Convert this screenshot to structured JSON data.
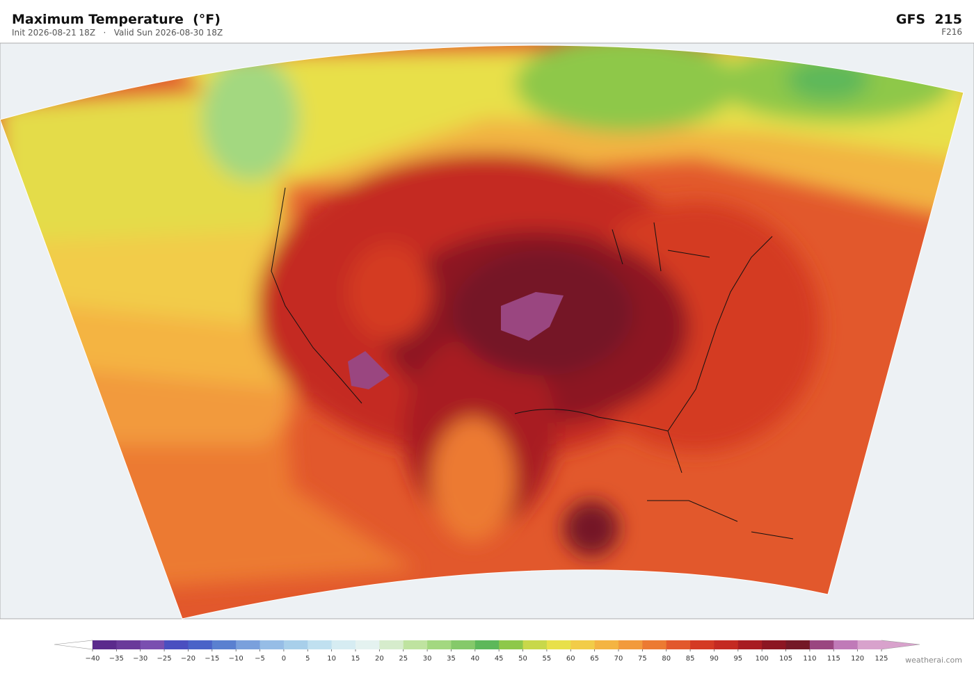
{
  "header": {
    "title": "Maximum Temperature  (°F)",
    "subtitle": "Init 2026-08-21 18Z   ·   Valid Sun 2026-08-30 18Z",
    "model": "GFS  215",
    "forecast_hour": "F216"
  },
  "colorbar": {
    "ticks": [
      {
        "value": -40,
        "label": "−40"
      },
      {
        "value": -35,
        "label": "−35"
      },
      {
        "value": -30,
        "label": "−30"
      },
      {
        "value": -25,
        "label": "−25"
      },
      {
        "value": -20,
        "label": "−20"
      },
      {
        "value": -15,
        "label": "−15"
      },
      {
        "value": -10,
        "label": "−10"
      },
      {
        "value": -5,
        "label": "−5"
      },
      0,
      5,
      10,
      15,
      20,
      25,
      30,
      35,
      40,
      45,
      50,
      55,
      60,
      65,
      70,
      75,
      80,
      85,
      90,
      95,
      100,
      105,
      110,
      115,
      120,
      125
    ],
    "colors": [
      "#5b2a8c",
      "#6a3a9a",
      "#7a4fb0",
      "#4a4fc0",
      "#4a63c8",
      "#5a80d0",
      "#7aa0dc",
      "#96bde6",
      "#a8cfea",
      "#c0e0f0",
      "#d6ecf2",
      "#e4f2f0",
      "#d6eccc",
      "#bfe3a0",
      "#a3d880",
      "#85c96a",
      "#5db85a",
      "#8ec84a",
      "#c8d84a",
      "#e8e04a",
      "#f2cc48",
      "#f4b442",
      "#f29a3c",
      "#ec7a32",
      "#e2582c",
      "#d43a24",
      "#c42a22",
      "#a81c22",
      "#8c1622",
      "#741826",
      "#9a4680",
      "#c07ab8",
      "#d8a2cc"
    ]
  },
  "watermark": "weatherai.com"
}
